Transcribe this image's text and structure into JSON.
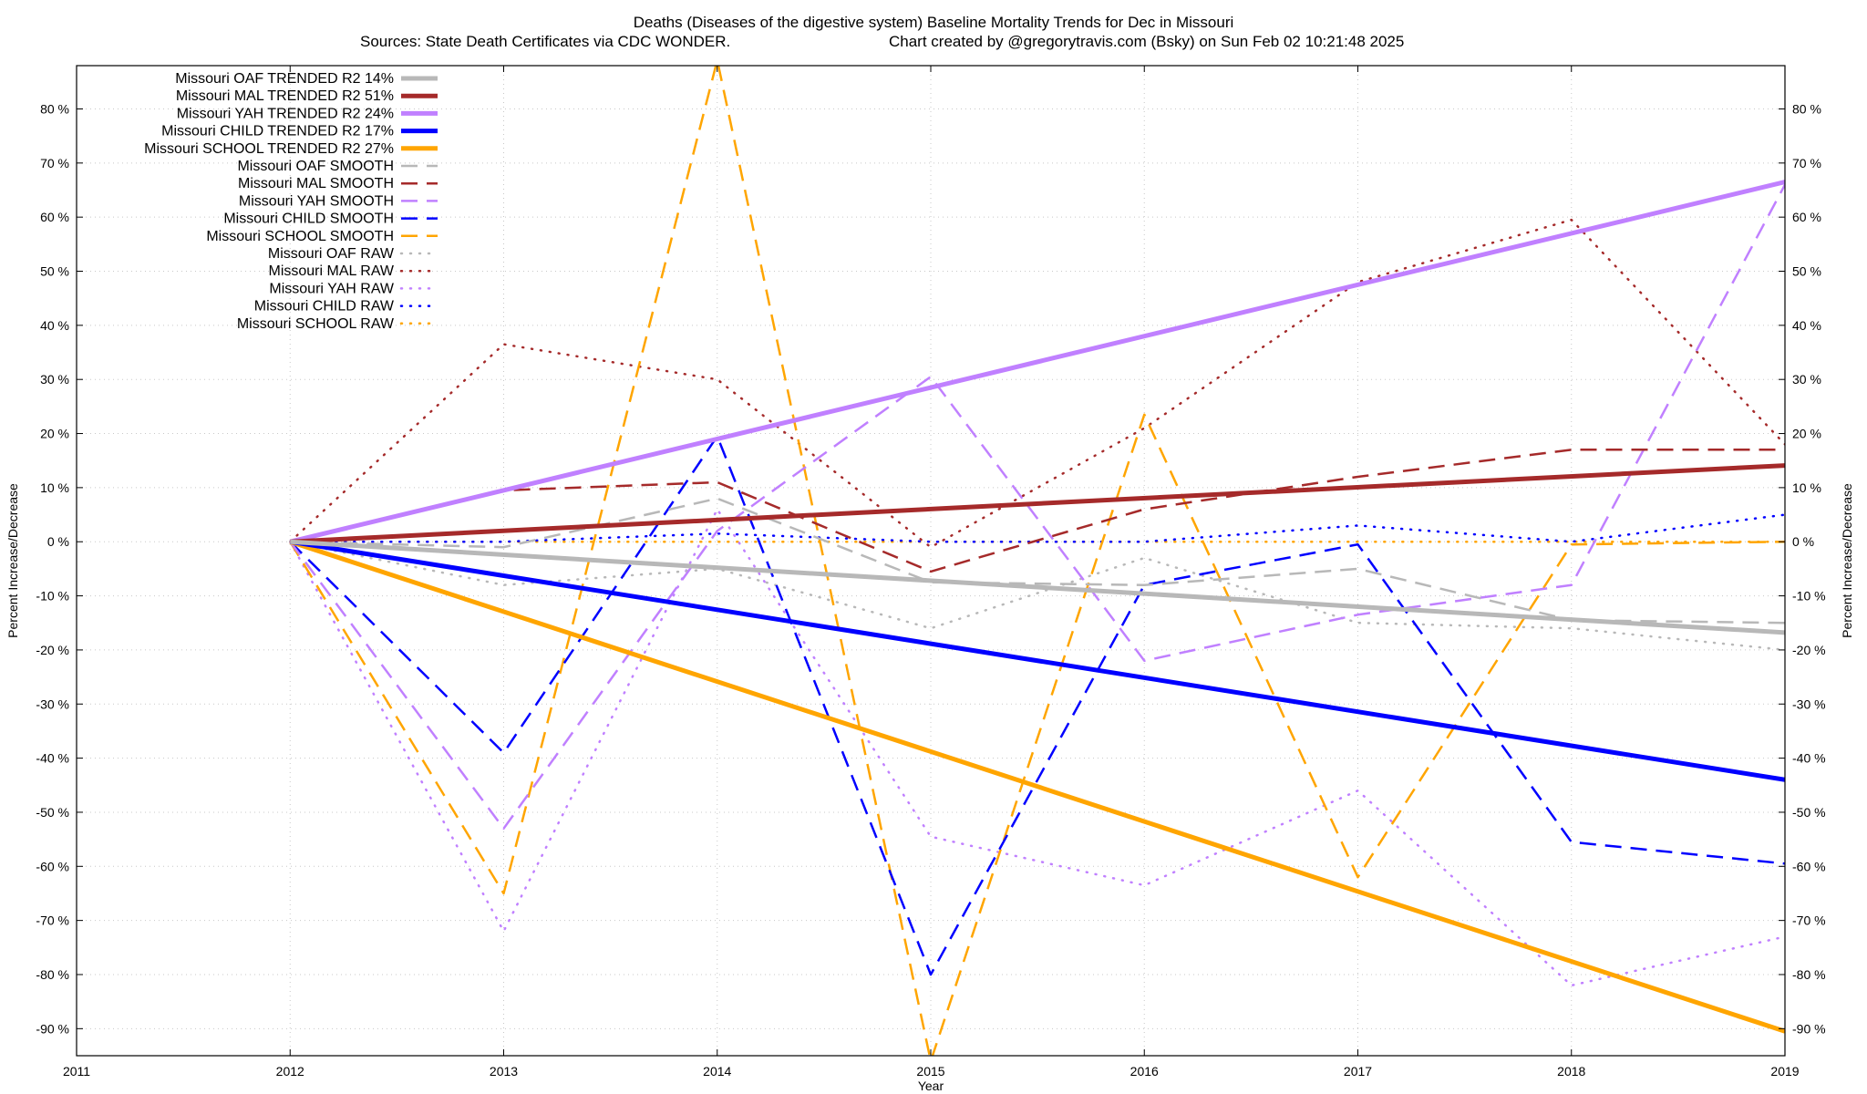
{
  "chart_data": {
    "type": "line",
    "title": "Deaths (Diseases of the digestive system)  Baseline Mortality Trends for Dec in Missouri",
    "subtitle_left": "Sources: State Death Certificates via CDC WONDER.",
    "subtitle_right": "Chart created by @gregorytravis.com (Bsky) on Sun Feb 02 10:21:48 2025",
    "xlabel": "Year",
    "ylabel": "Percent Increase/Decrease",
    "y2label": "Percent Increase/Decrease",
    "xlim": [
      2011,
      2019
    ],
    "ylim": [
      -95,
      88
    ],
    "x_ticks": [
      "2011",
      "2012",
      "2013",
      "2014",
      "2015",
      "2016",
      "2017",
      "2018",
      "2019"
    ],
    "y_ticks": [
      "80 %",
      "70 %",
      "60 %",
      "50 %",
      "40 %",
      "30 %",
      "20 %",
      "10 %",
      "0 %",
      "-10 %",
      "-20 %",
      "-30 %",
      "-40 %",
      "-50 %",
      "-60 %",
      "-70 %",
      "-80 %",
      "-90 %"
    ],
    "y_tick_values": [
      80,
      70,
      60,
      50,
      40,
      30,
      20,
      10,
      0,
      -10,
      -20,
      -30,
      -40,
      -50,
      -60,
      -70,
      -80,
      -90
    ],
    "grid": true,
    "legend_position": "top-left",
    "series": [
      {
        "name": "Missouri OAF TRENDED R2  14%",
        "style": "solid",
        "color": "#b8b8b8",
        "x": [
          2012,
          2019
        ],
        "y": [
          0,
          -16.8
        ]
      },
      {
        "name": "Missouri MAL TRENDED R2  51%",
        "style": "solid",
        "color": "#a52a2a",
        "x": [
          2012,
          2019
        ],
        "y": [
          0,
          14.1
        ]
      },
      {
        "name": "Missouri YAH TRENDED R2  24%",
        "style": "solid",
        "color": "#c080ff",
        "x": [
          2012,
          2019
        ],
        "y": [
          0,
          66.5
        ]
      },
      {
        "name": "Missouri CHILD TRENDED R2  17%",
        "style": "solid",
        "color": "#0000ff",
        "x": [
          2012,
          2019
        ],
        "y": [
          0,
          -44
        ]
      },
      {
        "name": "Missouri SCHOOL TRENDED R2  27%",
        "style": "solid",
        "color": "#ffa500",
        "x": [
          2012,
          2019
        ],
        "y": [
          0,
          -90.5
        ]
      },
      {
        "name": "Missouri OAF SMOOTH",
        "style": "dashed",
        "color": "#b8b8b8",
        "x": [
          2012,
          2013,
          2014,
          2015,
          2016,
          2017,
          2018,
          2019
        ],
        "y": [
          0,
          -1,
          8,
          -7.5,
          -8,
          -5,
          -14.5,
          -15
        ]
      },
      {
        "name": "Missouri MAL SMOOTH",
        "style": "dashed",
        "color": "#a52a2a",
        "x": [
          2012,
          2013,
          2014,
          2015,
          2016,
          2017,
          2018,
          2019
        ],
        "y": [
          0,
          9.5,
          11,
          -5.5,
          6,
          12,
          17,
          17
        ]
      },
      {
        "name": "Missouri YAH SMOOTH",
        "style": "dashed",
        "color": "#c080ff",
        "x": [
          2012,
          2013,
          2014,
          2015,
          2016,
          2017,
          2018,
          2019
        ],
        "y": [
          0,
          -53,
          2,
          30.5,
          -22,
          -13.5,
          -8,
          66
        ]
      },
      {
        "name": "Missouri CHILD SMOOTH",
        "style": "dashed",
        "color": "#0000ff",
        "x": [
          2012,
          2013,
          2014,
          2015,
          2016,
          2017,
          2018,
          2019
        ],
        "y": [
          0,
          -39,
          19.5,
          -80,
          -8,
          -0.5,
          -55.5,
          -59.5
        ]
      },
      {
        "name": "Missouri SCHOOL SMOOTH",
        "style": "dashed",
        "color": "#ffa500",
        "x": [
          2012,
          2013,
          2014,
          2015,
          2016,
          2017,
          2018,
          2019
        ],
        "y": [
          0,
          -65,
          89,
          -96,
          23.5,
          -62,
          -0.5,
          0
        ]
      },
      {
        "name": "Missouri OAF RAW",
        "style": "dotted",
        "color": "#b8b8b8",
        "x": [
          2012,
          2013,
          2014,
          2015,
          2016,
          2017,
          2018,
          2019
        ],
        "y": [
          0,
          -8,
          -5,
          -16,
          -3,
          -15,
          -16,
          -20
        ]
      },
      {
        "name": "Missouri MAL RAW",
        "style": "dotted",
        "color": "#a52a2a",
        "x": [
          2012,
          2013,
          2014,
          2015,
          2016,
          2017,
          2018,
          2019
        ],
        "y": [
          0,
          36.5,
          30,
          -1,
          21,
          48,
          59.5,
          18
        ]
      },
      {
        "name": "Missouri YAH RAW",
        "style": "dotted",
        "color": "#c080ff",
        "x": [
          2012,
          2013,
          2014,
          2015,
          2016,
          2017,
          2018,
          2019
        ],
        "y": [
          0,
          -72,
          6,
          -54.5,
          -63.5,
          -46,
          -82,
          -73
        ]
      },
      {
        "name": "Missouri CHILD RAW",
        "style": "dotted",
        "color": "#0000ff",
        "x": [
          2012,
          2013,
          2014,
          2015,
          2016,
          2017,
          2018,
          2019
        ],
        "y": [
          0,
          0,
          1.5,
          0,
          0,
          3,
          0,
          5
        ]
      },
      {
        "name": "Missouri SCHOOL RAW",
        "style": "dotted",
        "color": "#ffa500",
        "x": [
          2012,
          2013,
          2014,
          2015,
          2016,
          2017,
          2018,
          2019
        ],
        "y": [
          0,
          0,
          0,
          0,
          0,
          0,
          0,
          0
        ]
      }
    ]
  }
}
